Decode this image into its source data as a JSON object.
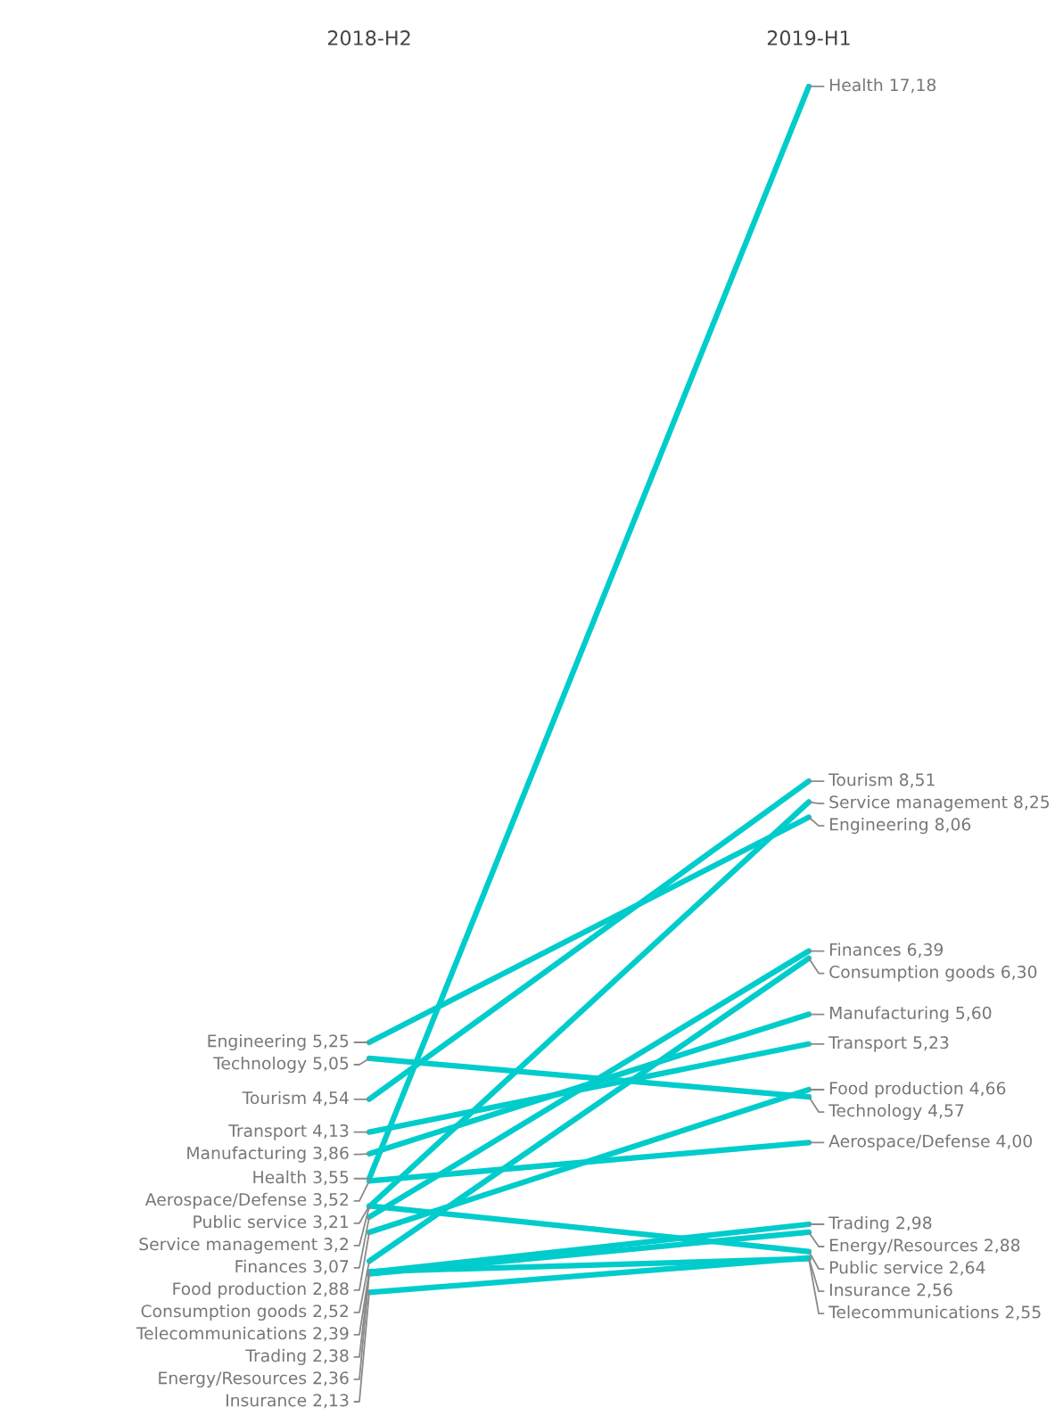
{
  "chart_data": {
    "type": "line",
    "categories": [
      "2018-H2",
      "2019-H1"
    ],
    "series": [
      {
        "color": "#00cccc",
        "values": [
          3.55,
          17.18
        ],
        "value_labels": [
          "Health 3,55",
          "Health 17,18"
        ]
      },
      {
        "color": "#00cccc",
        "values": [
          4.54,
          8.51
        ],
        "value_labels": [
          "Tourism 4,54",
          "Tourism 8,51"
        ]
      },
      {
        "color": "#00cccc",
        "values": [
          3.2,
          8.25
        ],
        "value_labels": [
          "Service management 3,2",
          "Service management 8,25"
        ]
      },
      {
        "color": "#00cccc",
        "values": [
          5.25,
          8.06
        ],
        "value_labels": [
          "Engineering 5,25",
          "Engineering 8,06"
        ]
      },
      {
        "color": "#00cccc",
        "values": [
          3.07,
          6.39
        ],
        "value_labels": [
          "Finances 3,07",
          "Finances 6,39"
        ]
      },
      {
        "color": "#00cccc",
        "values": [
          2.52,
          6.3
        ],
        "value_labels": [
          "Consumption goods 2,52",
          "Consumption goods 6,30"
        ]
      },
      {
        "color": "#00cccc",
        "values": [
          3.86,
          5.6
        ],
        "value_labels": [
          "Manufacturing 3,86",
          "Manufacturing 5,60"
        ]
      },
      {
        "color": "#00cccc",
        "values": [
          4.13,
          5.23
        ],
        "value_labels": [
          "Transport 4,13",
          "Transport 5,23"
        ]
      },
      {
        "color": "#00cccc",
        "values": [
          2.88,
          4.66
        ],
        "value_labels": [
          "Food production 2,88",
          "Food production 4,66"
        ]
      },
      {
        "color": "#00cccc",
        "values": [
          5.05,
          4.57
        ],
        "value_labels": [
          "Technology 5,05",
          "Technology 4,57"
        ]
      },
      {
        "color": "#00cccc",
        "values": [
          3.52,
          4.0
        ],
        "value_labels": [
          "Aerospace/Defense 3,52",
          "Aerospace/Defense 4,00"
        ]
      },
      {
        "color": "#00cccc",
        "values": [
          2.38,
          2.98
        ],
        "value_labels": [
          "Trading 2,38",
          "Trading 2,98"
        ]
      },
      {
        "color": "#00cccc",
        "values": [
          2.36,
          2.88
        ],
        "value_labels": [
          "Energy/Resources 2,36",
          "Energy/Resources 2,88"
        ]
      },
      {
        "color": "#00cccc",
        "values": [
          3.21,
          2.64
        ],
        "value_labels": [
          "Public service 3,21",
          "Public service 2,64"
        ]
      },
      {
        "color": "#00cccc",
        "values": [
          2.13,
          2.56
        ],
        "value_labels": [
          "Insurance 2,13",
          "Insurance 2,56"
        ]
      },
      {
        "color": "#00cccc",
        "values": [
          2.39,
          2.55
        ],
        "value_labels": [
          "Telecommunications 2,39",
          "Telecommunications 2,55"
        ]
      }
    ]
  }
}
